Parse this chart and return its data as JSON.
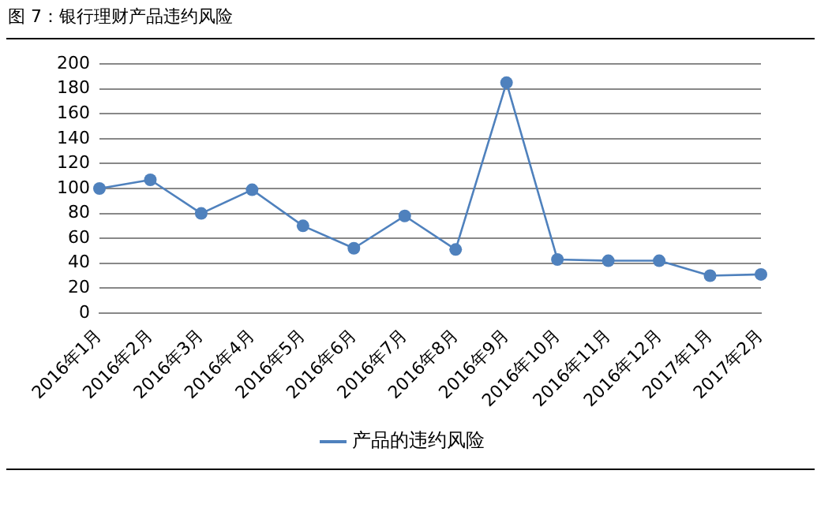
{
  "chart_data": {
    "type": "line",
    "title": "图 7：银行理财产品违约风险",
    "categories": [
      "2016年1月",
      "2016年2月",
      "2016年3月",
      "2016年4月",
      "2016年5月",
      "2016年6月",
      "2016年7月",
      "2016年8月",
      "2016年9月",
      "2016年10月",
      "2016年11月",
      "2016年12月",
      "2017年1月",
      "2017年2月"
    ],
    "series": [
      {
        "name": "产品的违约风险",
        "color": "#4f81bd",
        "values": [
          100,
          107,
          80,
          99,
          70,
          52,
          78,
          51,
          185,
          43,
          42,
          42,
          30,
          31
        ]
      }
    ],
    "ylim": [
      0,
      200
    ],
    "yticks": [
      0,
      20,
      40,
      60,
      80,
      100,
      120,
      140,
      160,
      180,
      200
    ],
    "grid": "y",
    "legend": "bottom",
    "marker": "circle"
  }
}
